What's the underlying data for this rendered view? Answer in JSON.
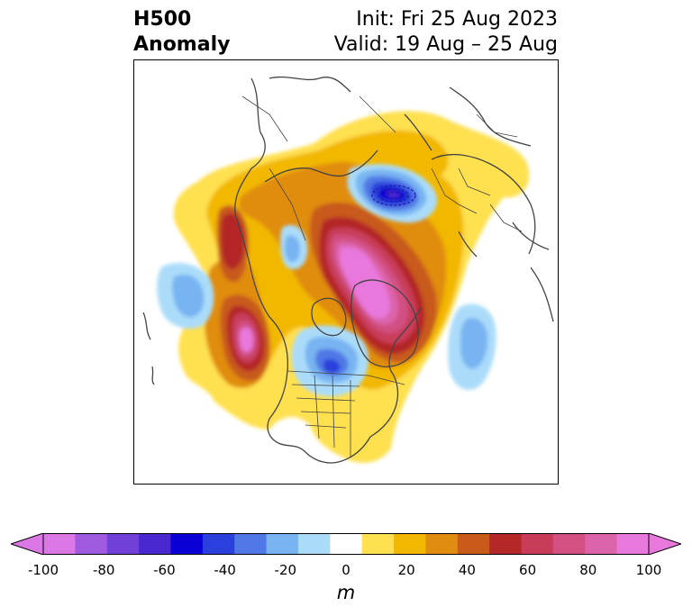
{
  "title": {
    "left_line1": "H500",
    "left_line2": "Anomaly",
    "right_line1": "Init: Fri 25 Aug 2023",
    "right_line2": "Valid: 19 Aug – 25 Aug"
  },
  "colorbar": {
    "units": "m",
    "ticks": [
      "-100",
      "-80",
      "-60",
      "-40",
      "-20",
      "0",
      "20",
      "40",
      "60",
      "80",
      "100"
    ],
    "colors": [
      "#dc78e6",
      "#a05ae0",
      "#7040d8",
      "#4a28d0",
      "#0a00d6",
      "#2a40dc",
      "#5078e6",
      "#78b4f2",
      "#aadcfa",
      "#ffffff",
      "#ffe050",
      "#f2b800",
      "#e08c10",
      "#c85a1a",
      "#b42828",
      "#c83c5a",
      "#d25082",
      "#dc64aa",
      "#e878dc"
    ],
    "range": [
      -100,
      100
    ],
    "interval": 10,
    "extend": "both"
  },
  "palette": {
    "coastline": "#444444",
    "frame": "#000000"
  }
}
